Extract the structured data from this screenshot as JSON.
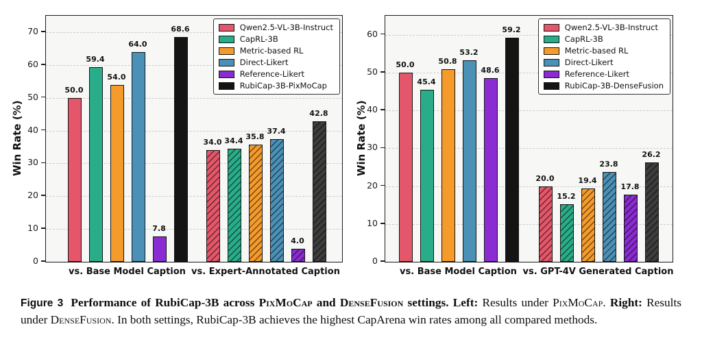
{
  "caption": {
    "segments": [
      {
        "text": "Figure 3"
      },
      {
        "text": " Performance of RubiCap-3B across "
      },
      {
        "text": "PixMoCap"
      },
      {
        "text": " and "
      },
      {
        "text": "DenseFusion"
      },
      {
        "text": " settings. "
      },
      {
        "text": "Left:"
      },
      {
        "text": " Results under "
      },
      {
        "text": "PixMoCap"
      },
      {
        "text": ". "
      },
      {
        "text": "Right:"
      },
      {
        "text": " Results under "
      },
      {
        "text": "DenseFusion"
      },
      {
        "text": ". In both settings, RubiCap-3B achieves the highest CapArena win rates among all compared methods."
      }
    ]
  },
  "chart_data": [
    {
      "type": "bar",
      "title": "",
      "xlabel": "",
      "ylabel": "Win Rate (%)",
      "ylim": [
        0,
        75
      ],
      "yticks": [
        0,
        10,
        20,
        30,
        40,
        50,
        60,
        70
      ],
      "grid": true,
      "legend_position": "upper right",
      "plot_bg": "#f7f7f6",
      "hatched_category_index": 1,
      "categories": [
        "vs. Base Model Caption",
        "vs. Expert-Annotated Caption"
      ],
      "series": [
        {
          "name": "Qwen2.5-VL-3B-Instruct",
          "color": "#e4566a",
          "values": [
            50.0,
            34.0
          ]
        },
        {
          "name": "CapRL-3B",
          "color": "#29ad89",
          "values": [
            59.4,
            34.4
          ]
        },
        {
          "name": "Metric-based RL",
          "color": "#f59b2b",
          "values": [
            54.0,
            35.8
          ]
        },
        {
          "name": "Direct-Likert",
          "color": "#4b90b6",
          "values": [
            64.0,
            37.4
          ]
        },
        {
          "name": "Reference-Likert",
          "color": "#8b2bd2",
          "values": [
            7.8,
            4.0
          ]
        },
        {
          "name": "RubiCap-3B-PixMoCap",
          "color": "#141414",
          "hatched_fill": "#3d3d3d",
          "values": [
            68.6,
            42.8
          ]
        }
      ]
    },
    {
      "type": "bar",
      "title": "",
      "xlabel": "",
      "ylabel": "Win Rate (%)",
      "ylim": [
        0,
        65
      ],
      "yticks": [
        0,
        10,
        20,
        30,
        40,
        50,
        60
      ],
      "grid": true,
      "legend_position": "upper right",
      "plot_bg": "#f7f7f6",
      "hatched_category_index": 1,
      "categories": [
        "vs. Base Model Caption",
        "vs. GPT-4V Generated Caption"
      ],
      "series": [
        {
          "name": "Qwen2.5-VL-3B-Instruct",
          "color": "#e4566a",
          "values": [
            50.0,
            20.0
          ]
        },
        {
          "name": "CapRL-3B",
          "color": "#29ad89",
          "values": [
            45.4,
            15.2
          ]
        },
        {
          "name": "Metric-based RL",
          "color": "#f59b2b",
          "values": [
            50.8,
            19.4
          ]
        },
        {
          "name": "Direct-Likert",
          "color": "#4b90b6",
          "values": [
            53.2,
            23.8
          ]
        },
        {
          "name": "Reference-Likert",
          "color": "#8b2bd2",
          "values": [
            48.6,
            17.8
          ]
        },
        {
          "name": "RubiCap-3B-DenseFusion",
          "color": "#141414",
          "hatched_fill": "#3d3d3d",
          "values": [
            59.2,
            26.2
          ]
        }
      ]
    }
  ]
}
